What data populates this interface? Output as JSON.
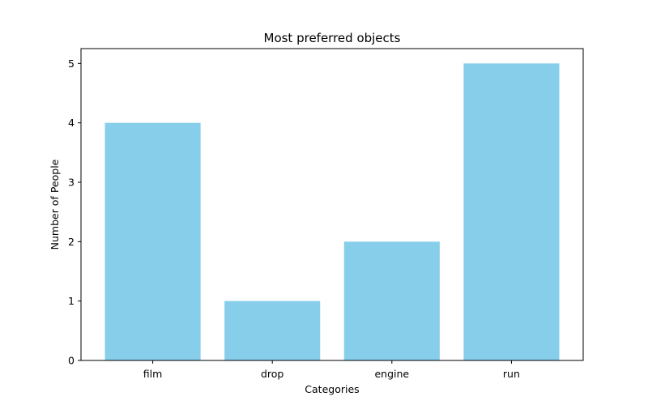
{
  "chart_data": {
    "type": "bar",
    "title": "Most preferred objects",
    "xlabel": "Categories",
    "ylabel": "Number of People",
    "categories": [
      "film",
      "drop",
      "engine",
      "run"
    ],
    "values": [
      4,
      1,
      2,
      5
    ],
    "ylim": [
      0,
      5.25
    ],
    "yticks": [
      0,
      1,
      2,
      3,
      4,
      5
    ],
    "bar_color": "#87CEEB",
    "grid": false,
    "legend": "none"
  }
}
